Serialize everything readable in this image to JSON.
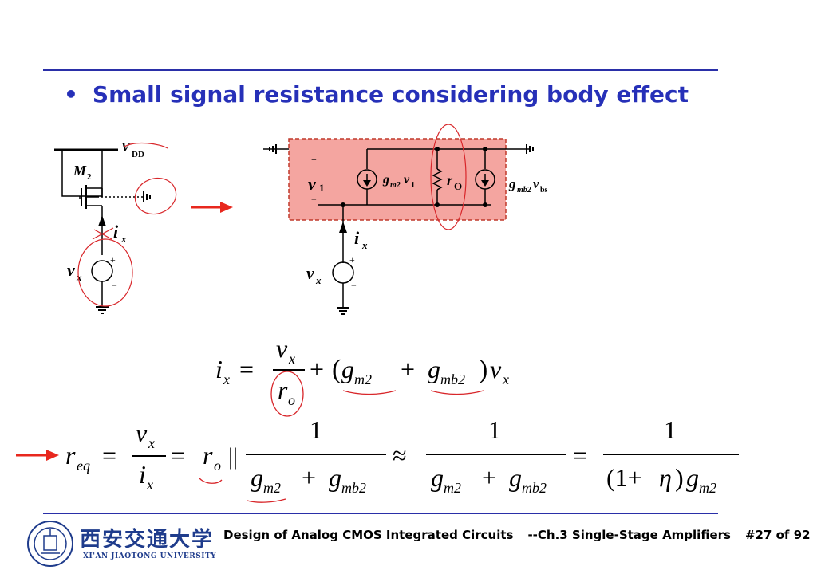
{
  "slide": {
    "title": "Small signal resistance considering body effect",
    "bullet": "•"
  },
  "left_circuit": {
    "supply_label": "V",
    "supply_sub": "DD",
    "transistor_label": "M",
    "transistor_sub": "2",
    "current_label": "i",
    "current_sub": "x",
    "source_label": "v",
    "source_sub": "x",
    "plus": "+",
    "minus": "−"
  },
  "small_signal": {
    "v1_label": "v",
    "v1_sub": "1",
    "gm_label": "g",
    "gm_sub": "m2",
    "gm_var": "v",
    "gm_var_sub": "1",
    "ro_label": "r",
    "ro_sub": "O",
    "gmb_label": "g",
    "gmb_sub": "mb2",
    "gmb_var": "v",
    "gmb_var_sub": "bs",
    "current_label": "i",
    "current_sub": "x",
    "source_label": "v",
    "source_sub": "x",
    "plus": "+",
    "minus": "−"
  },
  "equation1": {
    "lhs": "i",
    "lhs_sub": "x",
    "eq": "=",
    "num": "v",
    "num_sub": "x",
    "den": "r",
    "den_sub": "o",
    "plus": "+",
    "paren_open": "(",
    "g1": "g",
    "g1_sub": "m2",
    "plus2": "+",
    "g2": "g",
    "g2_sub": "mb2",
    "paren_close": ")",
    "vx": "v",
    "vx_sub": "x"
  },
  "equation2": {
    "lhs": "r",
    "lhs_sub": "eq",
    "eq": "=",
    "frac1_num": "v",
    "frac1_num_sub": "x",
    "frac1_den": "i",
    "frac1_den_sub": "x",
    "eq2": "=",
    "ro": "r",
    "ro_sub": "o",
    "parallel": "||",
    "one": "1",
    "g1": "g",
    "g1_sub": "m2",
    "plus": "+",
    "g2": "g",
    "g2_sub": "mb2",
    "approx": "≈",
    "eq3": "=",
    "eta_den_prefix": "(1+",
    "eta": "η",
    "eta_den_suffix": ")",
    "g3": "g",
    "g3_sub": "m2"
  },
  "footer": {
    "course": "Design of Analog CMOS Integrated Circuits",
    "chapter": "--Ch.3 Single-Stage Amplifiers",
    "page": "#27 of 92",
    "university_cn": "西安交通大学",
    "university_en": "XI'AN JIAOTONG UNIVERSITY"
  },
  "colors": {
    "title": "#2630b8",
    "rule": "#2a2fa8",
    "box_fill": "#f4a5a0",
    "box_border": "#c0392b",
    "arrow": "#e8281e",
    "annotation": "#d8262a"
  }
}
